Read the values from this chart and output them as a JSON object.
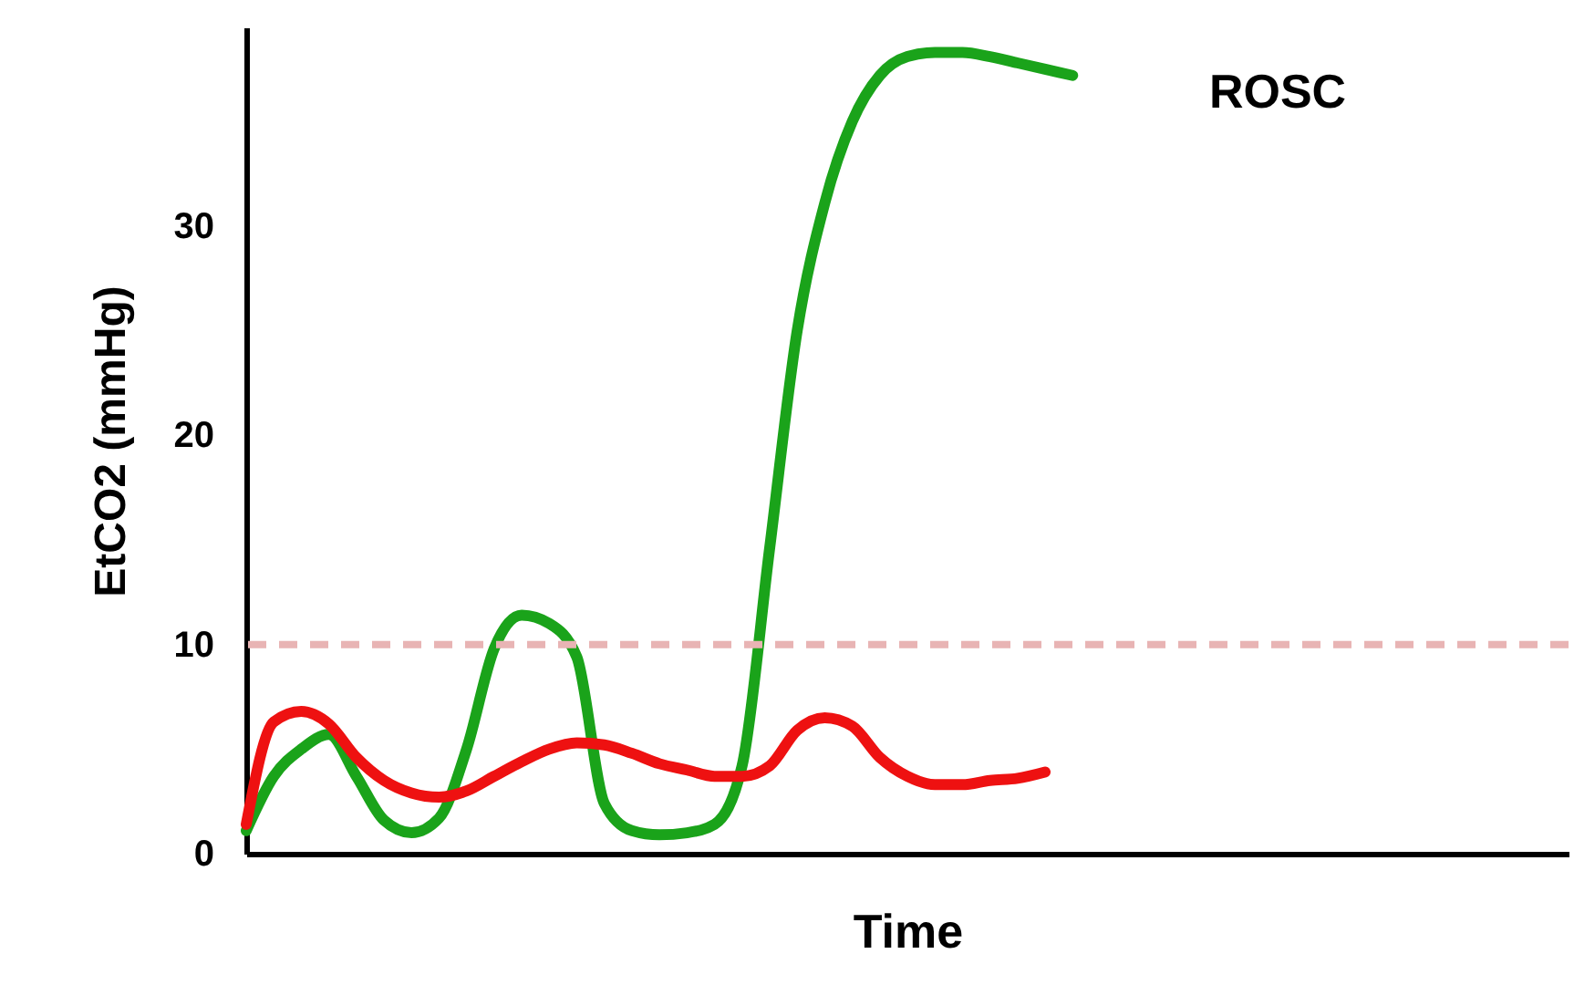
{
  "chart_data": {
    "type": "line",
    "xlabel": "Time",
    "ylabel": "EtCO2 (mmHg)",
    "categories": [
      null,
      null,
      null,
      null,
      null,
      null,
      null,
      null,
      null,
      null,
      null,
      null,
      null,
      null,
      null,
      null,
      null,
      null,
      null,
      null,
      null,
      null,
      null,
      null,
      null,
      null,
      null,
      null,
      null,
      null,
      null,
      null,
      null,
      null,
      null,
      null,
      null,
      null,
      null,
      null,
      null,
      null,
      null,
      null,
      null,
      null,
      null,
      null,
      null
    ],
    "series": [
      {
        "color": "#1aa31a",
        "values": [
          1.1,
          3.7,
          5.0,
          5.7,
          3.7,
          1.6,
          1.0,
          1.7,
          5.0,
          9.8,
          11.4,
          11.0,
          9.4,
          2.4,
          1.1,
          0.9,
          1.0,
          1.4,
          4.2,
          14.6,
          25.0,
          31.1,
          35.0,
          37.2,
          38.1,
          38.3,
          38.3,
          38.1,
          37.8,
          37.5,
          37.2,
          null,
          null,
          null,
          null,
          null,
          null,
          null,
          null,
          null,
          null,
          null,
          null,
          null,
          null,
          null,
          null,
          null,
          null
        ]
      },
      {
        "color": "#ee1111",
        "values": [
          1.4,
          6.3,
          6.8,
          6.2,
          4.6,
          3.5,
          2.9,
          2.7,
          3.0,
          3.7,
          4.4,
          5.0,
          5.3,
          5.2,
          4.8,
          4.3,
          4.0,
          3.7,
          3.7,
          4.2,
          5.9,
          6.5,
          6.1,
          4.6,
          3.7,
          3.3,
          3.3,
          3.5,
          3.6,
          3.9,
          null,
          null,
          null,
          null,
          null,
          null,
          null,
          null,
          null,
          null,
          null,
          null,
          null,
          null,
          null,
          null,
          null,
          null,
          null
        ]
      }
    ],
    "ylim": [
      0,
      39.5
    ],
    "yticks": [
      0,
      10,
      20,
      30
    ],
    "grid": false,
    "marker": "none",
    "line_style": "solid",
    "ref_lines": [
      {
        "axis": "y",
        "value": 10,
        "color": "#e8b4b4",
        "line_style": "dashed"
      }
    ],
    "annotations": [
      "ROSC"
    ]
  }
}
